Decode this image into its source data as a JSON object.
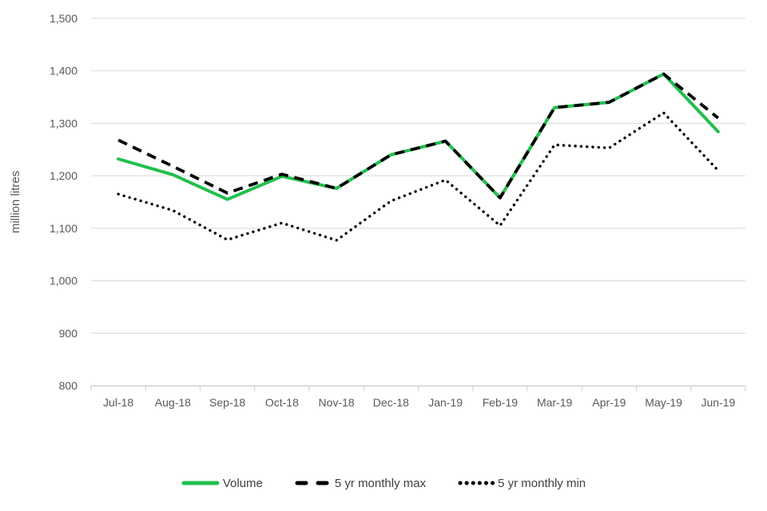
{
  "colors": {
    "background": "#ffffff",
    "grid": "#d9d9d9",
    "axis": "#cfcfcf",
    "tick_text": "#595959",
    "legend_text": "#404040",
    "volume_green": "#21bf4d",
    "series_black": "#000000"
  },
  "chart_data": {
    "type": "line",
    "title": "",
    "xlabel": "",
    "ylabel": "million litres",
    "ylim": [
      800,
      1500
    ],
    "ytick_step": 100,
    "ytick_labels": [
      "1,500",
      "1,400",
      "1,300",
      "1,200",
      "1,100",
      "1,000",
      "900",
      "800"
    ],
    "categories": [
      "Jul-18",
      "Aug-18",
      "Sep-18",
      "Oct-18",
      "Nov-18",
      "Dec-18",
      "Jan-19",
      "Feb-19",
      "Mar-19",
      "Apr-19",
      "May-19",
      "Jun-19"
    ],
    "series": [
      {
        "name": "Volume",
        "style": "solid",
        "color": "#21bf4d",
        "values": [
          1232,
          1202,
          1155,
          1199,
          1176,
          1240,
          1266,
          1158,
          1330,
          1340,
          1394,
          1284
        ]
      },
      {
        "name": "5 yr monthly max",
        "style": "dashed",
        "color": "#000000",
        "values": [
          1268,
          1218,
          1167,
          1203,
          1176,
          1240,
          1266,
          1158,
          1330,
          1340,
          1394,
          1310
        ]
      },
      {
        "name": "5 yr monthly min",
        "style": "dotted",
        "color": "#000000",
        "values": [
          1165,
          1134,
          1078,
          1110,
          1077,
          1152,
          1192,
          1105,
          1259,
          1253,
          1320,
          1210
        ]
      }
    ],
    "grid": true,
    "legend_position": "bottom"
  }
}
